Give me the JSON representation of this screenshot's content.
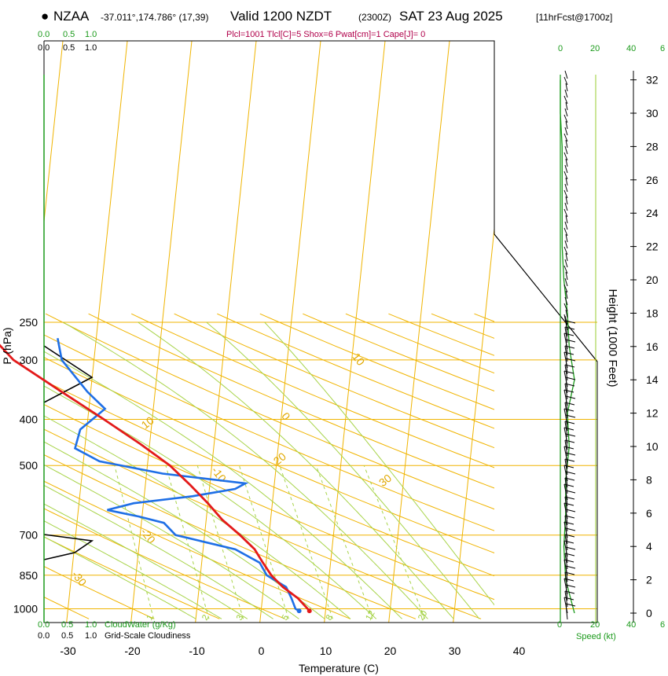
{
  "header": {
    "station_marker": "●",
    "station": "NZAA",
    "location": "-37.011°,174.786° (17,39)",
    "valid": "Valid 1200 NZDT",
    "zulu": "(2300Z)",
    "date": "SAT 23 Aug 2025",
    "forecast": "[11hrFcst@1700z]",
    "params": "Plcl=1001 Tlcl[C]=5 Shox=6 Pwat[cm]=1 Cape[J]= 0"
  },
  "colors": {
    "temperature": "#e31a1a",
    "dewpoint": "#1e6fe6",
    "isotherm": "#f0b400",
    "dry_adiabat": "#f0b400",
    "moist_adiabat": "#a8d44a",
    "mixing_ratio": "#a8d44a",
    "cloud": "#1b9a1b",
    "wind": "#000000"
  },
  "chart_data": {
    "type": "line",
    "title": "Skew-T Log-P sounding NZAA",
    "xlabel": "Temperature (C)",
    "ylabel": "P (hPa)",
    "y2label": "Height (1000 Feet)",
    "pressure_ticks": [
      250,
      300,
      400,
      500,
      700,
      850,
      1000
    ],
    "temperature_ticks": [
      -30,
      -20,
      -10,
      0,
      10,
      20,
      30,
      40
    ],
    "height_ticks": [
      0,
      2,
      4,
      6,
      8,
      10,
      12,
      14,
      16,
      18,
      20,
      22,
      24,
      26,
      28,
      30,
      32
    ],
    "series": [
      {
        "name": "Temperature",
        "points": [
          [
            1010,
            7.5
          ],
          [
            1000,
            7.2
          ],
          [
            950,
            5.5
          ],
          [
            900,
            3.0
          ],
          [
            850,
            1.0
          ],
          [
            800,
            -0.5
          ],
          [
            750,
            -2.0
          ],
          [
            700,
            -4.5
          ],
          [
            650,
            -7.5
          ],
          [
            600,
            -10.0
          ],
          [
            550,
            -13.0
          ],
          [
            500,
            -16.5
          ],
          [
            450,
            -21.5
          ],
          [
            400,
            -27.5
          ],
          [
            350,
            -34.5
          ],
          [
            300,
            -42.5
          ],
          [
            270,
            -46.0
          ]
        ]
      },
      {
        "name": "Dewpoint",
        "points": [
          [
            1010,
            5.9
          ],
          [
            1000,
            5.3
          ],
          [
            950,
            4.5
          ],
          [
            900,
            3.5
          ],
          [
            850,
            0.3
          ],
          [
            800,
            -1.0
          ],
          [
            750,
            -5.0
          ],
          [
            700,
            -14.5
          ],
          [
            660,
            -16.5
          ],
          [
            640,
            -20.5
          ],
          [
            620,
            -25.5
          ],
          [
            600,
            -21.5
          ],
          [
            580,
            -12.5
          ],
          [
            560,
            -6.0
          ],
          [
            545,
            -4.5
          ],
          [
            520,
            -17.5
          ],
          [
            490,
            -27.5
          ],
          [
            460,
            -31.5
          ],
          [
            420,
            -31.0
          ],
          [
            380,
            -27.5
          ],
          [
            350,
            -30.5
          ],
          [
            300,
            -35.0
          ],
          [
            270,
            -36.0
          ]
        ]
      }
    ],
    "cloud_water": {
      "label": "CloudWater (g/Kg)",
      "ticks": [
        "0.0",
        "0.5",
        "1.0"
      ]
    },
    "cloudiness": {
      "label": "Grid-Scale Cloudiness",
      "ticks": [
        "0.0",
        "0.5",
        "1.0"
      ]
    },
    "wind_speed": {
      "label": "Speed (kt)",
      "ticks": [
        "0",
        "20",
        "40",
        "6"
      ]
    },
    "wind_speed_profile": [
      [
        0,
        8
      ],
      [
        2,
        3
      ],
      [
        4,
        2
      ],
      [
        6,
        3
      ],
      [
        8,
        3
      ],
      [
        10,
        5
      ],
      [
        12,
        4
      ],
      [
        14,
        8
      ],
      [
        16,
        5
      ],
      [
        18,
        4
      ],
      [
        20,
        2
      ],
      [
        22,
        1
      ],
      [
        24,
        1
      ],
      [
        26,
        1
      ],
      [
        28,
        1
      ],
      [
        30,
        0
      ],
      [
        32,
        0
      ]
    ],
    "isotherm_labels": [
      "10",
      "0",
      "-10",
      "-20",
      "-30"
    ],
    "dry_adiabat_labels": [
      "0",
      "10",
      "20",
      "30"
    ],
    "mixing_ratio_labels": [
      "1",
      "2",
      "3",
      "5",
      "8",
      "12",
      "20"
    ]
  }
}
